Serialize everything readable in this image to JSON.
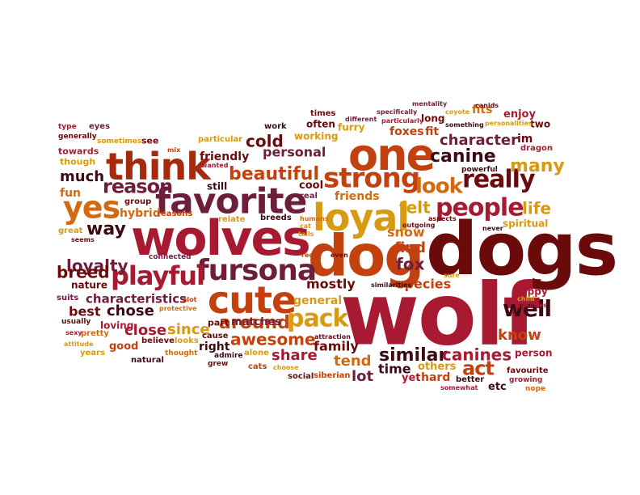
{
  "palette": {
    "dark_maroon": "#6b0a0a",
    "crimson": "#a81a32",
    "burgundy": "#6e1e3c",
    "orange_red": "#c2410e",
    "orange": "#d46a10",
    "gold": "#d79a12",
    "dark": "#3b0a12"
  },
  "words": [
    {
      "text": "wolf",
      "color": "#a81a32"
    },
    {
      "text": "dogs",
      "color": "#6b0a0a"
    },
    {
      "text": "dog",
      "color": "#c2410e"
    },
    {
      "text": "wolves",
      "color": "#a81a32"
    },
    {
      "text": "one",
      "color": "#c2410e"
    },
    {
      "text": "favorite",
      "color": "#6e1e3c"
    },
    {
      "text": "think",
      "color": "#a52a0e"
    },
    {
      "text": "loyal",
      "color": "#d79a12"
    },
    {
      "text": "cute",
      "color": "#c2410e"
    },
    {
      "text": "fursona",
      "color": "#6e1e3c"
    },
    {
      "text": "playful",
      "color": "#a81a32"
    },
    {
      "text": "yes",
      "color": "#d46a10"
    },
    {
      "text": "strong",
      "color": "#c2410e"
    },
    {
      "text": "people",
      "color": "#a81a32"
    },
    {
      "text": "really",
      "color": "#6b0a0a"
    },
    {
      "text": "pack",
      "color": "#d79a12"
    },
    {
      "text": "beautiful",
      "color": "#c2410e"
    },
    {
      "text": "look",
      "color": "#d46a10"
    },
    {
      "text": "canine",
      "color": "#3b0a12"
    },
    {
      "text": "reason",
      "color": "#6e1e3c"
    },
    {
      "text": "around",
      "color": "#c2410e"
    },
    {
      "text": "awesome",
      "color": "#c2410e"
    },
    {
      "text": "similar",
      "color": "#3b0a12"
    },
    {
      "text": "canines",
      "color": "#a81a32"
    },
    {
      "text": "well",
      "color": "#3b0a12"
    },
    {
      "text": "act",
      "color": "#c2410e"
    },
    {
      "text": "character",
      "color": "#6e1e3c"
    },
    {
      "text": "many",
      "color": "#d79a12"
    },
    {
      "text": "loyalty",
      "color": "#6e1e3c"
    },
    {
      "text": "breed",
      "color": "#6b0a0a"
    },
    {
      "text": "way",
      "color": "#3b0a12"
    },
    {
      "text": "cold",
      "color": "#6b0a0a"
    },
    {
      "text": "personal",
      "color": "#6e1e3c"
    },
    {
      "text": "much",
      "color": "#3b0a12"
    },
    {
      "text": "friends",
      "color": "#d46a10"
    },
    {
      "text": "felt",
      "color": "#d79a12"
    },
    {
      "text": "life",
      "color": "#d79a12"
    },
    {
      "text": "fox",
      "color": "#6e1e3c"
    },
    {
      "text": "find",
      "color": "#c2410e"
    },
    {
      "text": "snow",
      "color": "#d46a10"
    },
    {
      "text": "species",
      "color": "#c2410e"
    },
    {
      "text": "mostly",
      "color": "#6b0a0a"
    },
    {
      "text": "characteristics",
      "color": "#6e1e3c"
    },
    {
      "text": "chose",
      "color": "#3b0a12"
    },
    {
      "text": "best",
      "color": "#6b0a0a"
    },
    {
      "text": "since",
      "color": "#d79a12"
    },
    {
      "text": "close",
      "color": "#a81a32"
    },
    {
      "text": "share",
      "color": "#a81a32"
    },
    {
      "text": "family",
      "color": "#6b0a0a"
    },
    {
      "text": "know",
      "color": "#c2410e"
    },
    {
      "text": "tend",
      "color": "#d46a10"
    },
    {
      "text": "lot",
      "color": "#6e1e3c"
    },
    {
      "text": "time",
      "color": "#3b0a12"
    },
    {
      "text": "friendly",
      "color": "#6b0a0a"
    },
    {
      "text": "matches",
      "color": "#6e1e3c"
    },
    {
      "text": "part",
      "color": "#6b0a0a"
    },
    {
      "text": "general",
      "color": "#d79a12"
    },
    {
      "text": "fun",
      "color": "#d46a10"
    },
    {
      "text": "hybrid",
      "color": "#d46a10"
    },
    {
      "text": "foxes",
      "color": "#c2410e"
    },
    {
      "text": "fit",
      "color": "#c2410e"
    },
    {
      "text": "fits",
      "color": "#d46a10"
    },
    {
      "text": "im",
      "color": "#6b0a0a"
    },
    {
      "text": "enjoy",
      "color": "#a81a32"
    },
    {
      "text": "two",
      "color": "#6b0a0a"
    },
    {
      "text": "dragon",
      "color": "#a81a32"
    },
    {
      "text": "spiritual",
      "color": "#d79a12"
    },
    {
      "text": "happy",
      "color": "#a81a32"
    },
    {
      "text": "hard",
      "color": "#c2410e"
    },
    {
      "text": "others",
      "color": "#d79a12"
    },
    {
      "text": "yet",
      "color": "#a81a32"
    },
    {
      "text": "etc",
      "color": "#3b0a12"
    },
    {
      "text": "person",
      "color": "#a81a32"
    },
    {
      "text": "favourite",
      "color": "#6b0a0a"
    },
    {
      "text": "growing",
      "color": "#a81a32"
    },
    {
      "text": "nope",
      "color": "#d46a10"
    },
    {
      "text": "better",
      "color": "#3b0a12"
    },
    {
      "text": "somewhat",
      "color": "#a81a32"
    },
    {
      "text": "siberian",
      "color": "#c2410e"
    },
    {
      "text": "social",
      "color": "#6b0a0a"
    },
    {
      "text": "choose",
      "color": "#d79a12"
    },
    {
      "text": "cats",
      "color": "#c2410e"
    },
    {
      "text": "alone",
      "color": "#d79a12"
    },
    {
      "text": "grew",
      "color": "#6b0a0a"
    },
    {
      "text": "admire",
      "color": "#3b0a12"
    },
    {
      "text": "right",
      "color": "#3b0a12"
    },
    {
      "text": "cause",
      "color": "#6b0a0a"
    },
    {
      "text": "thought",
      "color": "#d46a10"
    },
    {
      "text": "looks",
      "color": "#d79a12"
    },
    {
      "text": "believe",
      "color": "#6b0a0a"
    },
    {
      "text": "natural",
      "color": "#3b0a12"
    },
    {
      "text": "good",
      "color": "#c2410e"
    },
    {
      "text": "loving",
      "color": "#a81a32"
    },
    {
      "text": "years",
      "color": "#d79a12"
    },
    {
      "text": "pretty",
      "color": "#d46a10"
    },
    {
      "text": "attitude",
      "color": "#d79a12"
    },
    {
      "text": "sexy",
      "color": "#a81a32"
    },
    {
      "text": "usually",
      "color": "#6b0a0a"
    },
    {
      "text": "suits",
      "color": "#6e1e3c"
    },
    {
      "text": "nature",
      "color": "#6b0a0a"
    },
    {
      "text": "protective",
      "color": "#d46a10"
    },
    {
      "text": "alot",
      "color": "#c2410e"
    },
    {
      "text": "connected",
      "color": "#6e1e3c"
    },
    {
      "text": "seems",
      "color": "#6b0a0a"
    },
    {
      "text": "great",
      "color": "#d79a12"
    },
    {
      "text": "group",
      "color": "#6b0a0a"
    },
    {
      "text": "reasons",
      "color": "#c2410e"
    },
    {
      "text": "relate",
      "color": "#d79a12"
    },
    {
      "text": "breeds",
      "color": "#3b0a12"
    },
    {
      "text": "humans",
      "color": "#d46a10"
    },
    {
      "text": "cat",
      "color": "#d79a12"
    },
    {
      "text": "tails",
      "color": "#d79a12"
    },
    {
      "text": "red",
      "color": "#c2410e"
    },
    {
      "text": "real",
      "color": "#6e1e3c"
    },
    {
      "text": "cool",
      "color": "#6b0a0a"
    },
    {
      "text": "still",
      "color": "#3b0a12"
    },
    {
      "text": "wanted",
      "color": "#a81a32"
    },
    {
      "text": "mix",
      "color": "#c2410e"
    },
    {
      "text": "towards",
      "color": "#a81a32"
    },
    {
      "text": "though",
      "color": "#d79a12"
    },
    {
      "text": "generally",
      "color": "#6b0a0a"
    },
    {
      "text": "type",
      "color": "#a81a32"
    },
    {
      "text": "eyes",
      "color": "#6e1e3c"
    },
    {
      "text": "sometimes",
      "color": "#d79a12"
    },
    {
      "text": "see",
      "color": "#6b0a0a"
    },
    {
      "text": "particular",
      "color": "#d79a12"
    },
    {
      "text": "work",
      "color": "#3b0a12"
    },
    {
      "text": "working",
      "color": "#d79a12"
    },
    {
      "text": "often",
      "color": "#6b0a0a"
    },
    {
      "text": "times",
      "color": "#6b0a0a"
    },
    {
      "text": "furry",
      "color": "#d79a12"
    },
    {
      "text": "different",
      "color": "#6e1e3c"
    },
    {
      "text": "specifically",
      "color": "#6e1e3c"
    },
    {
      "text": "particularly",
      "color": "#a81a32"
    },
    {
      "text": "long",
      "color": "#6b0a0a"
    },
    {
      "text": "mentality",
      "color": "#6e1e3c"
    },
    {
      "text": "canids",
      "color": "#6b0a0a"
    },
    {
      "text": "something",
      "color": "#3b0a12"
    },
    {
      "text": "personalities",
      "color": "#d79a12"
    },
    {
      "text": "coyote",
      "color": "#d79a12"
    },
    {
      "text": "powerful",
      "color": "#3b0a12"
    },
    {
      "text": "aspects",
      "color": "#6b0a0a"
    },
    {
      "text": "outgoing",
      "color": "#6b0a0a"
    },
    {
      "text": "never",
      "color": "#3b0a12"
    },
    {
      "text": "qualities",
      "color": "#a81a32"
    },
    {
      "text": "child",
      "color": "#d79a12"
    },
    {
      "text": "even",
      "color": "#6b0a0a"
    },
    {
      "text": "similarities",
      "color": "#3b0a12"
    },
    {
      "text": "sure",
      "color": "#d79a12"
    },
    {
      "text": "attraction",
      "color": "#6b0a0a"
    }
  ]
}
